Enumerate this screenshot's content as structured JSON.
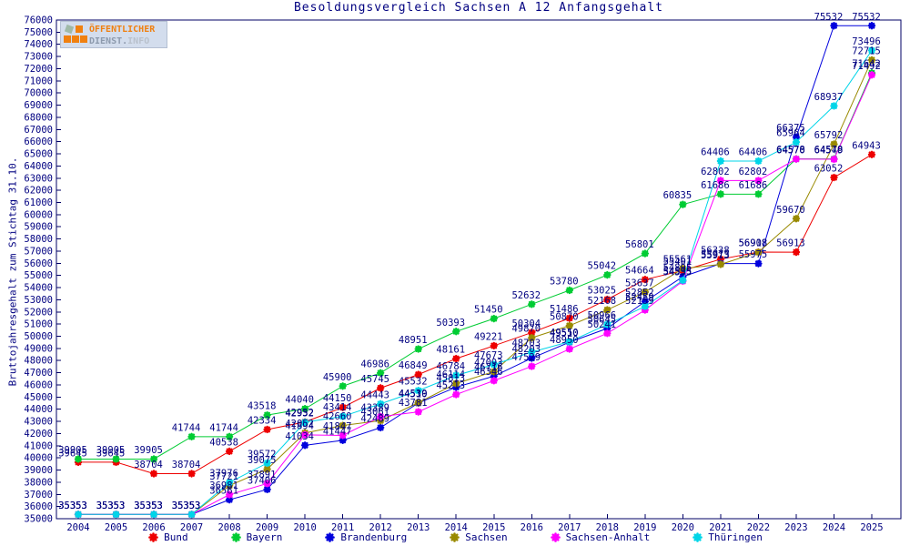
{
  "title": "Besoldungsvergleich Sachsen A 12 Anfangsgehalt",
  "y_axis_label": "Bruttojahresgehalt zum Stichtag 31.10.",
  "logo": {
    "line1": "ÖFFENTLICHER",
    "line2a": "DIENST.",
    "line2b": "INFO"
  },
  "colors": {
    "title_text": "#000080",
    "axis_frame": "#000066",
    "point_label": "#000080"
  },
  "chart_data": {
    "type": "line",
    "title": "Besoldungsvergleich Sachsen A 12 Anfangsgehalt",
    "xlabel": "",
    "ylabel": "Bruttojahresgehalt zum Stichtag 31.10.",
    "x": [
      2004,
      2005,
      2006,
      2007,
      2008,
      2009,
      2010,
      2011,
      2012,
      2013,
      2014,
      2015,
      2016,
      2017,
      2018,
      2019,
      2020,
      2021,
      2022,
      2023,
      2024,
      2025
    ],
    "ylim": [
      35000,
      76000
    ],
    "ytick_step": 1000,
    "grid": false,
    "marker": "asterisk",
    "point_labels": true,
    "legend_position": "bottom",
    "series": [
      {
        "name": "Bund",
        "color": "#ee0000",
        "values": [
          39645,
          39645,
          38704,
          38704,
          40538,
          42334,
          42952,
          44150,
          45745,
          46849,
          48161,
          49221,
          50304,
          51486,
          53025,
          54664,
          55401,
          56338,
          56918,
          56913,
          63052,
          64943
        ]
      },
      {
        "name": "Bayern",
        "color": "#00cc33",
        "values": [
          39905,
          39905,
          39905,
          41744,
          41744,
          43518,
          44040,
          45900,
          46986,
          48951,
          50393,
          51450,
          52632,
          53780,
          55042,
          56801,
          60835,
          61686,
          61686,
          64578,
          64578,
          71642
        ]
      },
      {
        "name": "Brandenburg",
        "color": "#0000dd",
        "values": [
          35353,
          35353,
          35353,
          35353,
          36561,
          37406,
          41034,
          41447,
          42489,
          44510,
          45813,
          46716,
          48203,
          49510,
          50645,
          52852,
          54895,
          55975,
          55975,
          66375,
          75532,
          75532
        ]
      },
      {
        "name": "Sachsen",
        "color": "#998a00",
        "values": [
          35353,
          35353,
          35353,
          35353,
          37721,
          39075,
          42052,
          42660,
          43061,
          44539,
          46114,
          47093,
          49870,
          50870,
          52168,
          53637,
          55561,
          55913,
          56908,
          59670,
          65792,
          72715
        ]
      },
      {
        "name": "Sachsen-Anhalt",
        "color": "#ff00ff",
        "values": [
          35353,
          35353,
          35353,
          35353,
          36981,
          37891,
          41894,
          41847,
          43389,
          43781,
          45213,
          46346,
          47529,
          48950,
          50241,
          52159,
          54535,
          62802,
          62802,
          64570,
          64549,
          71492
        ]
      },
      {
        "name": "Thüringen",
        "color": "#00d5e8",
        "values": [
          35353,
          35353,
          35353,
          35353,
          37976,
          39572,
          42932,
          43414,
          44443,
          45532,
          46784,
          47673,
          48703,
          49550,
          50966,
          52459,
          54595,
          64406,
          64406,
          65964,
          68937,
          73496
        ]
      }
    ]
  }
}
